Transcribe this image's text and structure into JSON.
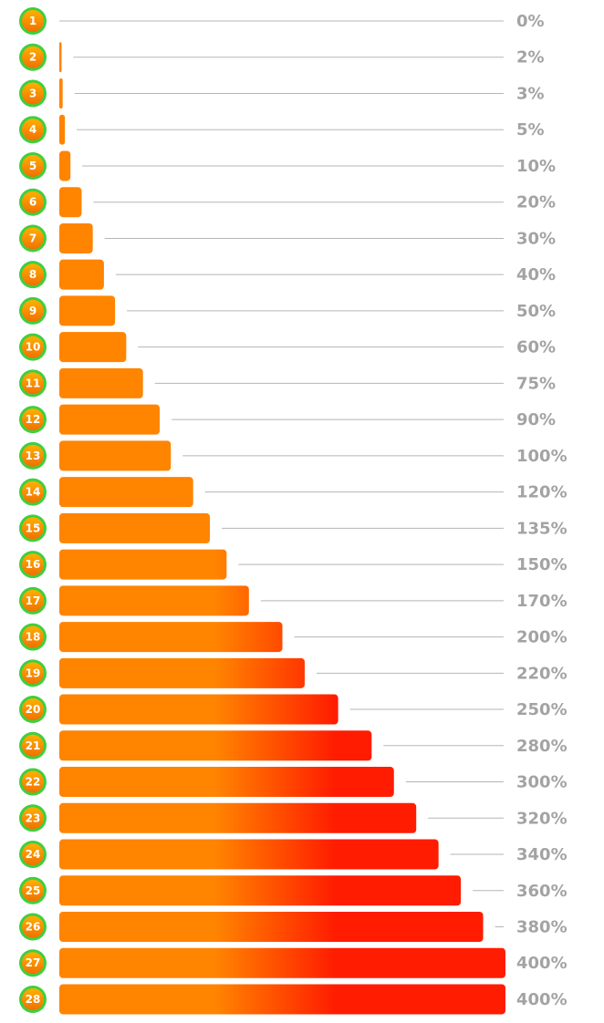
{
  "chart_data": {
    "type": "bar",
    "orientation": "horizontal",
    "categories": [
      "1",
      "2",
      "3",
      "4",
      "5",
      "6",
      "7",
      "8",
      "9",
      "10",
      "11",
      "12",
      "13",
      "14",
      "15",
      "16",
      "17",
      "18",
      "19",
      "20",
      "21",
      "22",
      "23",
      "24",
      "25",
      "26",
      "27",
      "28"
    ],
    "values": [
      0,
      2,
      3,
      5,
      10,
      20,
      30,
      40,
      50,
      60,
      75,
      90,
      100,
      120,
      135,
      150,
      170,
      200,
      220,
      250,
      280,
      300,
      320,
      340,
      360,
      380,
      400,
      400
    ],
    "value_labels": [
      "0%",
      "2%",
      "3%",
      "5%",
      "10%",
      "20%",
      "30%",
      "40%",
      "50%",
      "60%",
      "75%",
      "90%",
      "100%",
      "120%",
      "135%",
      "150%",
      "170%",
      "200%",
      "220%",
      "250%",
      "280%",
      "300%",
      "320%",
      "340%",
      "360%",
      "380%",
      "400%",
      "400%"
    ],
    "xlim": [
      0,
      400
    ],
    "colors": [
      "#ff8400",
      "#ff1c00"
    ]
  }
}
